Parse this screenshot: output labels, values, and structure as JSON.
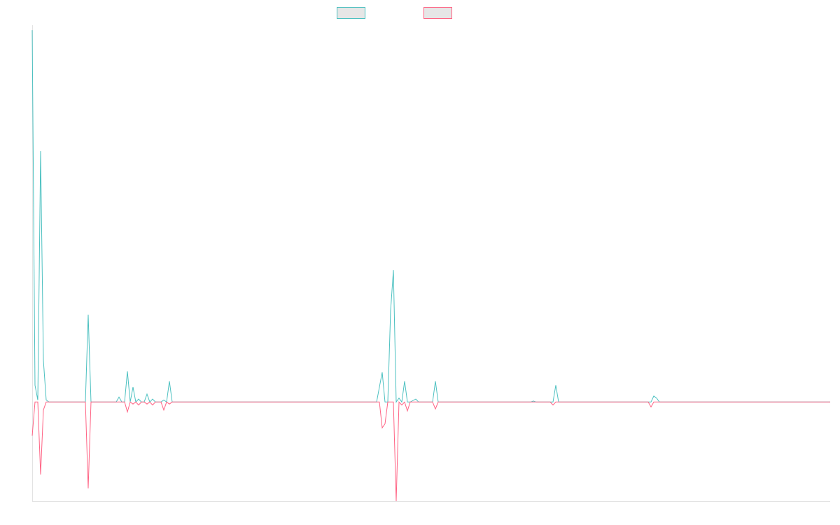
{
  "chart_data": {
    "type": "line",
    "title": "",
    "xlabel": "",
    "ylabel": "",
    "x_range": [
      0,
      285
    ],
    "ylim": [
      -100,
      380
    ],
    "grid": false,
    "legend_placement": "top-center",
    "series": [
      {
        "color": "#4bc0c0",
        "swatch_fill": "#e6e6e6",
        "points": [
          [
            0,
            375
          ],
          [
            1,
            17
          ],
          [
            2,
            2
          ],
          [
            3,
            253
          ],
          [
            4,
            42
          ],
          [
            5,
            2
          ],
          [
            6,
            0
          ],
          [
            7,
            0
          ],
          [
            18,
            0
          ],
          [
            19,
            0
          ],
          [
            20,
            88
          ],
          [
            21,
            0
          ],
          [
            30,
            0
          ],
          [
            31,
            5
          ],
          [
            32,
            0
          ],
          [
            33,
            0
          ],
          [
            34,
            31
          ],
          [
            35,
            0
          ],
          [
            36,
            15
          ],
          [
            37,
            0
          ],
          [
            38,
            3
          ],
          [
            39,
            0
          ],
          [
            40,
            0
          ],
          [
            41,
            8
          ],
          [
            42,
            0
          ],
          [
            43,
            3
          ],
          [
            44,
            0
          ],
          [
            45,
            0
          ],
          [
            46,
            0
          ],
          [
            47,
            2
          ],
          [
            48,
            0
          ],
          [
            49,
            21
          ],
          [
            50,
            0
          ],
          [
            51,
            0
          ],
          [
            123,
            0
          ],
          [
            125,
            30
          ],
          [
            126,
            0
          ],
          [
            127,
            0
          ],
          [
            128,
            92
          ],
          [
            129,
            133
          ],
          [
            130,
            0
          ],
          [
            131,
            4
          ],
          [
            132,
            0
          ],
          [
            133,
            21
          ],
          [
            134,
            0
          ],
          [
            135,
            0
          ],
          [
            137,
            3
          ],
          [
            138,
            0
          ],
          [
            143,
            0
          ],
          [
            144,
            21
          ],
          [
            145,
            0
          ],
          [
            146,
            0
          ],
          [
            178,
            0
          ],
          [
            179,
            1
          ],
          [
            180,
            0
          ],
          [
            186,
            0
          ],
          [
            187,
            17
          ],
          [
            188,
            0
          ],
          [
            221,
            0
          ],
          [
            222,
            6
          ],
          [
            223,
            4
          ],
          [
            224,
            0
          ],
          [
            285,
            0
          ]
        ]
      },
      {
        "color": "#ff6384",
        "swatch_fill": "#e6e6e6",
        "points": [
          [
            0,
            -34
          ],
          [
            1,
            0
          ],
          [
            2,
            0
          ],
          [
            3,
            -73
          ],
          [
            4,
            -8
          ],
          [
            5,
            0
          ],
          [
            6,
            0
          ],
          [
            19,
            0
          ],
          [
            20,
            -87
          ],
          [
            21,
            0
          ],
          [
            30,
            0
          ],
          [
            31,
            0
          ],
          [
            32,
            0
          ],
          [
            33,
            0
          ],
          [
            34,
            -10
          ],
          [
            35,
            0
          ],
          [
            36,
            -2
          ],
          [
            37,
            0
          ],
          [
            38,
            -3
          ],
          [
            39,
            0
          ],
          [
            40,
            0
          ],
          [
            41,
            -2
          ],
          [
            42,
            0
          ],
          [
            43,
            -3
          ],
          [
            44,
            0
          ],
          [
            45,
            0
          ],
          [
            46,
            0
          ],
          [
            47,
            -8
          ],
          [
            48,
            0
          ],
          [
            49,
            -2
          ],
          [
            50,
            0
          ],
          [
            123,
            0
          ],
          [
            124,
            0
          ],
          [
            125,
            -26
          ],
          [
            126,
            -22
          ],
          [
            127,
            0
          ],
          [
            129,
            0
          ],
          [
            130,
            -100
          ],
          [
            131,
            0
          ],
          [
            132,
            -3
          ],
          [
            133,
            0
          ],
          [
            134,
            -9
          ],
          [
            135,
            0
          ],
          [
            143,
            0
          ],
          [
            144,
            -7
          ],
          [
            145,
            0
          ],
          [
            185,
            0
          ],
          [
            186,
            -3
          ],
          [
            187,
            0
          ],
          [
            220,
            0
          ],
          [
            221,
            -5
          ],
          [
            222,
            0
          ],
          [
            285,
            0
          ]
        ]
      }
    ]
  }
}
